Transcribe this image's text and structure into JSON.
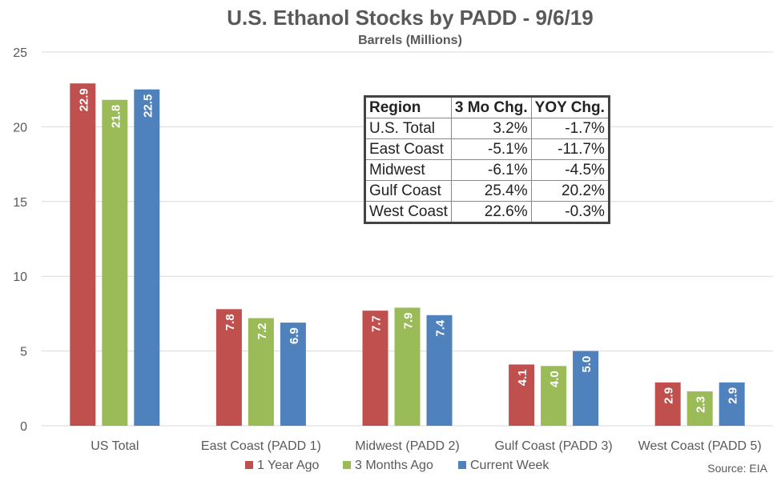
{
  "chart_data": {
    "type": "bar",
    "title": "U.S. Ethanol Stocks by PADD - 9/6/19",
    "subtitle": "Barrels (Millions)",
    "categories": [
      "US Total",
      "East Coast (PADD 1)",
      "Midwest (PADD 2)",
      "Gulf Coast (PADD 3)",
      "West Coast (PADD 5)"
    ],
    "series": [
      {
        "name": "1 Year Ago",
        "color": "#c0504d",
        "values": [
          22.9,
          7.8,
          7.7,
          4.1,
          2.9
        ],
        "labels": [
          "22.9",
          "7.8",
          "7.7",
          "4.1",
          "2.9"
        ]
      },
      {
        "name": "3 Months Ago",
        "color": "#9bbb59",
        "values": [
          21.8,
          7.2,
          7.9,
          4.0,
          2.3
        ],
        "labels": [
          "21.8",
          "7.2",
          "7.9",
          "4.0",
          "2.3"
        ]
      },
      {
        "name": "Current Week",
        "color": "#4f81bd",
        "values": [
          22.5,
          6.9,
          7.4,
          5.0,
          2.9
        ],
        "labels": [
          "22.5",
          "6.9",
          "7.4",
          "5.0",
          "2.9"
        ]
      }
    ],
    "ylim": [
      0,
      25
    ],
    "yticks": [
      0,
      5,
      10,
      15,
      20,
      25
    ],
    "grid": true,
    "legend_position": "bottom",
    "source": "Source: EIA"
  },
  "table": {
    "headers": [
      "Region",
      "3 Mo Chg.",
      "YOY Chg."
    ],
    "rows": [
      [
        "U.S. Total",
        "3.2%",
        "-1.7%"
      ],
      [
        "East Coast",
        "-5.1%",
        "-11.7%"
      ],
      [
        "Midwest",
        "-6.1%",
        "-4.5%"
      ],
      [
        "Gulf Coast",
        "25.4%",
        "20.2%"
      ],
      [
        "West Coast",
        "22.6%",
        "-0.3%"
      ]
    ]
  }
}
